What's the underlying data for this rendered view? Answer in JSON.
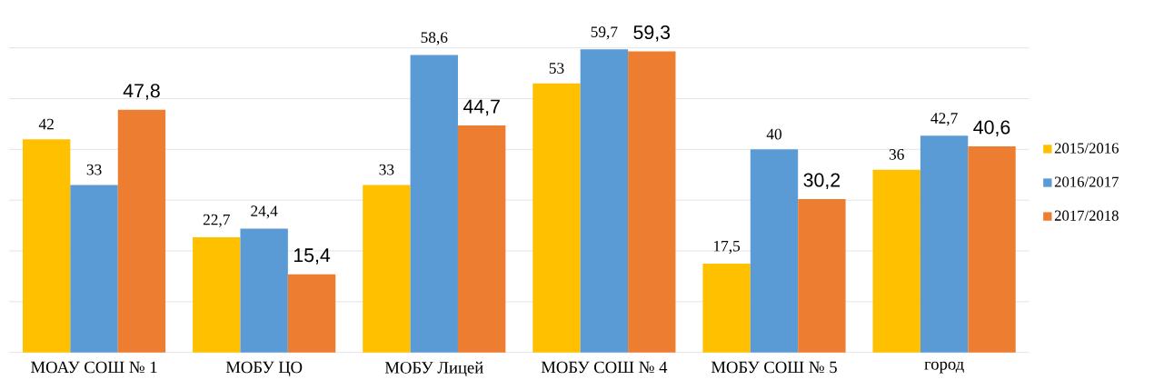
{
  "chart_data": {
    "type": "bar",
    "categories": [
      "МОАУ СОШ № 1",
      "МОБУ ЦО",
      "МОБУ Лицей",
      "МОБУ СОШ № 4",
      "МОБУ СОШ № 5",
      "город"
    ],
    "series": [
      {
        "name": "2015/2016",
        "color": "#ffc000",
        "values": [
          42,
          22.7,
          33,
          53,
          17.5,
          36
        ],
        "value_labels": [
          "42",
          "22,7",
          "33",
          "53",
          "17,5",
          "36"
        ]
      },
      {
        "name": "2016/2017",
        "color": "#5b9bd5",
        "values": [
          33,
          24.4,
          58.6,
          59.7,
          40,
          42.7
        ],
        "value_labels": [
          "33",
          "24,4",
          "58,6",
          "59,7",
          "40",
          "42,7"
        ]
      },
      {
        "name": "2017/2018",
        "color": "#ed7d31",
        "values": [
          47.8,
          15.4,
          44.7,
          59.3,
          30.2,
          40.6
        ],
        "value_labels": [
          "47,8",
          "15,4",
          "44,7",
          "59,3",
          "30,2",
          "40,6"
        ]
      }
    ],
    "tick_labels": "x",
    "grid": "y",
    "legend": "right"
  }
}
